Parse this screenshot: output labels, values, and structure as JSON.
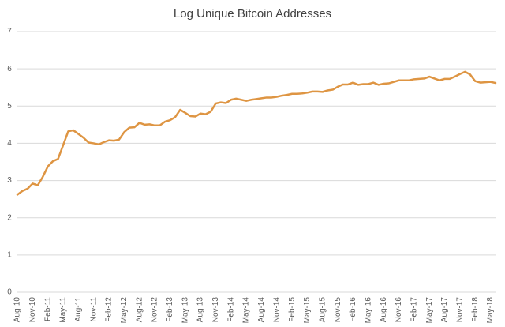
{
  "chart_data": {
    "type": "line",
    "title": "Log Unique Bitcoin Addresses",
    "categories": [
      "Aug-10",
      null,
      null,
      "Nov-10",
      null,
      null,
      "Feb-11",
      null,
      null,
      "May-11",
      null,
      null,
      "Aug-11",
      null,
      null,
      "Nov-11",
      null,
      null,
      "Feb-12",
      null,
      null,
      "May-12",
      null,
      null,
      "Aug-12",
      null,
      null,
      "Nov-12",
      null,
      null,
      "Feb-13",
      null,
      null,
      "May-13",
      null,
      null,
      "Aug-13",
      null,
      null,
      "Nov-13",
      null,
      null,
      "Feb-14",
      null,
      null,
      "May-14",
      null,
      null,
      "Aug-14",
      null,
      null,
      "Nov-14",
      null,
      null,
      "Feb-15",
      null,
      null,
      "May-15",
      null,
      null,
      "Aug-15",
      null,
      null,
      "Nov-15",
      null,
      null,
      "Feb-16",
      null,
      null,
      "May-16",
      null,
      null,
      "Aug-16",
      null,
      null,
      "Nov-16",
      null,
      null,
      "Feb-17",
      null,
      null,
      "May-17",
      null,
      null,
      "Aug-17",
      null,
      null,
      "Nov-17",
      null,
      null,
      "Feb-18",
      null,
      null,
      "May-18",
      null
    ],
    "values": [
      2.62,
      2.72,
      2.78,
      2.92,
      2.87,
      3.1,
      3.38,
      3.52,
      3.58,
      3.95,
      4.32,
      4.35,
      4.25,
      4.15,
      4.02,
      4.0,
      3.97,
      4.03,
      4.08,
      4.07,
      4.1,
      4.3,
      4.42,
      4.43,
      4.55,
      4.5,
      4.51,
      4.48,
      4.48,
      4.58,
      4.62,
      4.7,
      4.9,
      4.82,
      4.73,
      4.72,
      4.8,
      4.78,
      4.85,
      5.07,
      5.1,
      5.08,
      5.17,
      5.2,
      5.17,
      5.14,
      5.17,
      5.19,
      5.21,
      5.23,
      5.23,
      5.25,
      5.28,
      5.3,
      5.33,
      5.33,
      5.34,
      5.36,
      5.39,
      5.39,
      5.38,
      5.42,
      5.44,
      5.52,
      5.58,
      5.58,
      5.63,
      5.57,
      5.59,
      5.59,
      5.63,
      5.57,
      5.6,
      5.61,
      5.65,
      5.69,
      5.69,
      5.69,
      5.72,
      5.73,
      5.74,
      5.79,
      5.74,
      5.69,
      5.73,
      5.73,
      5.79,
      5.86,
      5.92,
      5.85,
      5.67,
      5.63,
      5.64,
      5.65,
      5.62
    ],
    "color": "#de9543",
    "ylim": [
      0,
      7
    ],
    "yticks": [
      0,
      1,
      2,
      3,
      4,
      5,
      6,
      7
    ],
    "grid": true
  }
}
